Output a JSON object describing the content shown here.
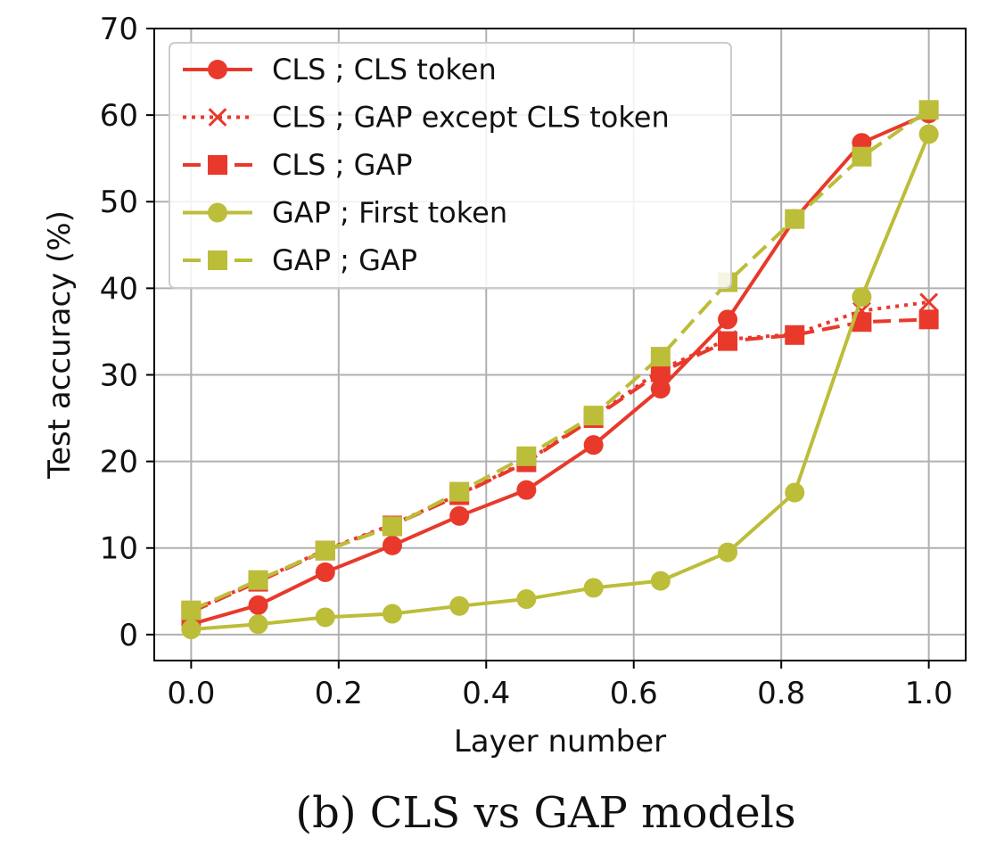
{
  "colors": {
    "red": "#e8392b",
    "olive": "#bcbd39",
    "grid": "#b0b0b0",
    "axis": "#000000"
  },
  "caption": "(b) CLS vs GAP models",
  "chart_data": {
    "type": "line",
    "xlabel": "Layer number",
    "ylabel": "Test accuracy (%)",
    "xlim": [
      -0.05,
      1.05
    ],
    "ylim": [
      -3,
      70
    ],
    "xticks": [
      0.0,
      0.2,
      0.4,
      0.6,
      0.8,
      1.0
    ],
    "xtick_labels": [
      "0.0",
      "0.2",
      "0.4",
      "0.6",
      "0.8",
      "1.0"
    ],
    "yticks": [
      0,
      10,
      20,
      30,
      40,
      50,
      60,
      70
    ],
    "ytick_labels": [
      "0",
      "10",
      "20",
      "30",
      "40",
      "50",
      "60",
      "70"
    ],
    "grid": true,
    "legend_position": "upper-left",
    "x": [
      0.0,
      0.0909,
      0.1818,
      0.2727,
      0.3636,
      0.4545,
      0.5455,
      0.6364,
      0.7273,
      0.8182,
      0.9091,
      1.0
    ],
    "series": [
      {
        "name": "CLS ; CLS token",
        "color": "red",
        "linestyle": "solid",
        "marker": "circle",
        "values": [
          1.2,
          3.4,
          7.2,
          10.3,
          13.7,
          16.7,
          21.9,
          28.4,
          36.4,
          48.0,
          56.8,
          60.2
        ]
      },
      {
        "name": "CLS ; GAP except CLS token",
        "color": "red",
        "linestyle": "dotted",
        "marker": "x",
        "values": [
          2.7,
          6.2,
          9.8,
          12.7,
          16.2,
          20.0,
          25.1,
          30.6,
          34.1,
          34.7,
          37.4,
          38.4
        ]
      },
      {
        "name": "CLS ; GAP",
        "color": "red",
        "linestyle": "dashed",
        "marker": "square",
        "values": [
          2.6,
          6.1,
          9.7,
          12.6,
          16.1,
          19.9,
          25.0,
          30.3,
          33.9,
          34.6,
          36.1,
          36.4
        ]
      },
      {
        "name": "GAP ; First token",
        "color": "olive",
        "linestyle": "solid",
        "marker": "circle",
        "values": [
          0.6,
          1.2,
          2.0,
          2.4,
          3.3,
          4.1,
          5.4,
          6.2,
          9.5,
          16.4,
          39.0,
          57.8
        ]
      },
      {
        "name": "GAP ; GAP",
        "color": "olive",
        "linestyle": "dashed",
        "marker": "square",
        "values": [
          2.8,
          6.3,
          9.7,
          12.5,
          16.5,
          20.6,
          25.3,
          32.1,
          40.7,
          48.0,
          55.2,
          60.6
        ]
      }
    ]
  }
}
